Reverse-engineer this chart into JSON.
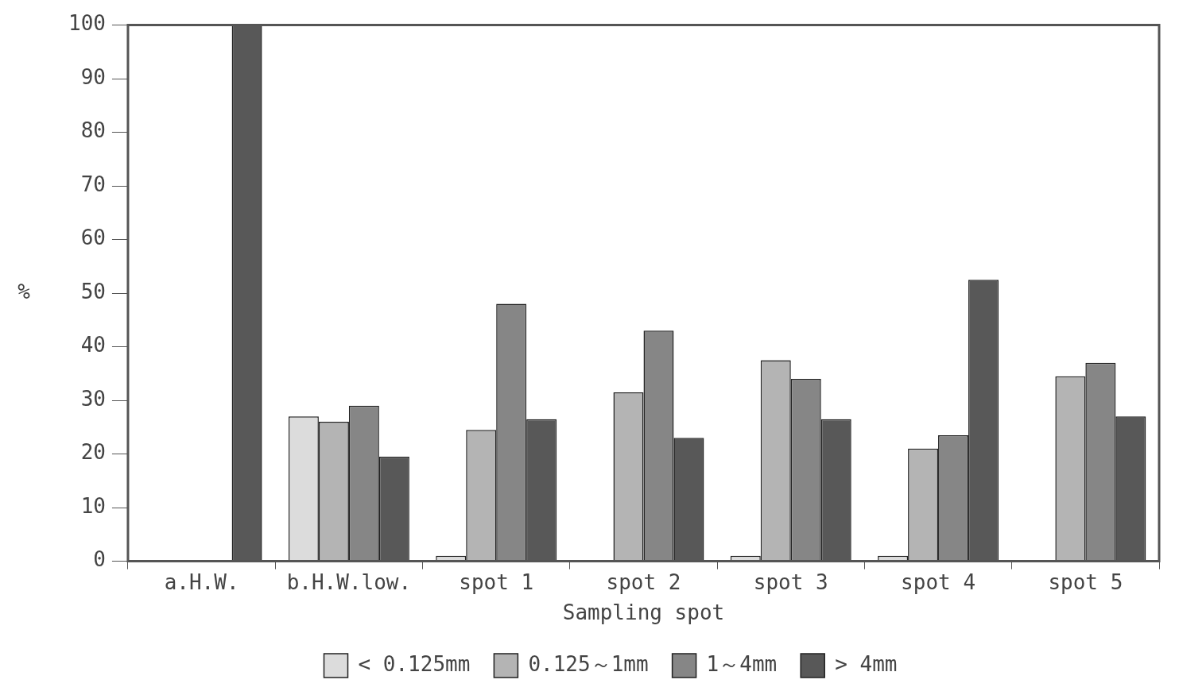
{
  "chart_data": {
    "type": "bar",
    "xlabel": "Sampling spot",
    "ylabel": "%",
    "categories": [
      "a.H.W.",
      "b.H.W.low.",
      "spot 1",
      "spot 2",
      "spot 3",
      "spot 4",
      "spot 5"
    ],
    "series": [
      {
        "name": "< 0.125mm",
        "color": "#dcdcdc",
        "values": [
          0,
          27,
          1,
          0,
          1,
          1,
          0
        ]
      },
      {
        "name": "0.125～1mm",
        "color": "#b4b4b4",
        "values": [
          0,
          26,
          24.5,
          31.5,
          37.5,
          21,
          34.5
        ]
      },
      {
        "name": "1～4mm",
        "color": "#868686",
        "values": [
          0,
          29,
          48,
          43,
          34,
          23.5,
          37
        ]
      },
      {
        "name": "> 4mm",
        "color": "#585858",
        "values": [
          100,
          19.5,
          26.5,
          23,
          26.5,
          52.5,
          27
        ]
      }
    ],
    "ylim": [
      0,
      100
    ],
    "yticks": [
      0,
      10,
      20,
      30,
      40,
      50,
      60,
      70,
      80,
      90,
      100
    ],
    "grid": false,
    "legend": "bottom"
  }
}
